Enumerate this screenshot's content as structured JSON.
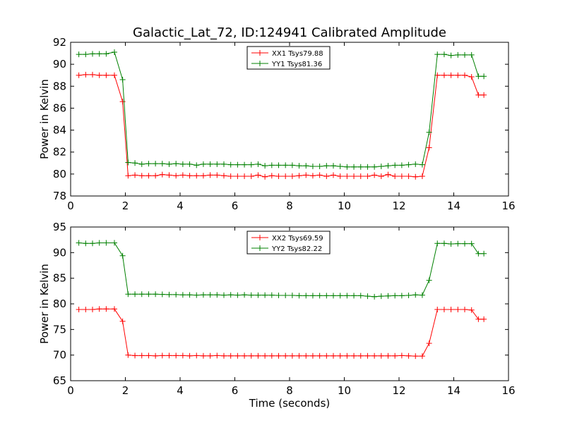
{
  "title": "Galactic_Lat_72, ID:124941 Calibrated Amplitude",
  "chart_data": [
    {
      "type": "line",
      "xlabel": "",
      "ylabel": "Power in Kelvin",
      "xlim": [
        0,
        16
      ],
      "ylim": [
        78,
        92
      ],
      "xticks": [
        "0",
        "2",
        "4",
        "6",
        "8",
        "10",
        "12",
        "14",
        "16"
      ],
      "yticks": [
        "78",
        "80",
        "82",
        "84",
        "86",
        "88",
        "90",
        "92"
      ],
      "legend_position": "upper-center",
      "x": [
        0.3,
        0.55,
        0.8,
        1.05,
        1.3,
        1.6,
        1.9,
        2.1,
        2.35,
        2.6,
        2.85,
        3.1,
        3.35,
        3.6,
        3.85,
        4.1,
        4.35,
        4.6,
        4.85,
        5.1,
        5.35,
        5.6,
        5.85,
        6.1,
        6.35,
        6.6,
        6.85,
        7.1,
        7.35,
        7.6,
        7.85,
        8.1,
        8.35,
        8.6,
        8.85,
        9.1,
        9.35,
        9.6,
        9.85,
        10.1,
        10.35,
        10.6,
        10.85,
        11.1,
        11.35,
        11.6,
        11.85,
        12.1,
        12.35,
        12.6,
        12.85,
        13.1,
        13.4,
        13.65,
        13.9,
        14.15,
        14.4,
        14.65,
        14.9,
        15.1
      ],
      "series": [
        {
          "name": "XX1 Tsys79.88",
          "color": "#ff0000",
          "values": [
            89.0,
            89.05,
            89.05,
            89.0,
            89.0,
            89.0,
            86.6,
            79.85,
            79.9,
            79.85,
            79.85,
            79.85,
            79.95,
            79.9,
            79.85,
            79.9,
            79.85,
            79.85,
            79.85,
            79.9,
            79.9,
            79.85,
            79.8,
            79.8,
            79.8,
            79.8,
            79.9,
            79.75,
            79.85,
            79.8,
            79.8,
            79.8,
            79.85,
            79.9,
            79.85,
            79.9,
            79.8,
            79.9,
            79.8,
            79.8,
            79.8,
            79.8,
            79.8,
            79.9,
            79.8,
            79.95,
            79.8,
            79.8,
            79.8,
            79.75,
            79.8,
            82.4,
            89.0,
            89.0,
            89.0,
            89.0,
            89.0,
            88.85,
            87.2,
            87.2
          ]
        },
        {
          "name": "YY1 Tsys81.36",
          "color": "#008000",
          "values": [
            90.9,
            90.9,
            90.95,
            90.95,
            90.95,
            91.1,
            88.6,
            81.05,
            81.0,
            80.9,
            80.95,
            80.95,
            80.95,
            80.9,
            80.95,
            80.9,
            80.9,
            80.8,
            80.9,
            80.9,
            80.9,
            80.9,
            80.85,
            80.85,
            80.85,
            80.85,
            80.9,
            80.75,
            80.8,
            80.8,
            80.8,
            80.8,
            80.75,
            80.75,
            80.7,
            80.7,
            80.75,
            80.75,
            80.7,
            80.65,
            80.65,
            80.65,
            80.65,
            80.65,
            80.7,
            80.75,
            80.8,
            80.8,
            80.85,
            80.9,
            80.85,
            83.8,
            90.9,
            90.9,
            90.8,
            90.85,
            90.85,
            90.85,
            88.9,
            88.9
          ]
        }
      ]
    },
    {
      "type": "line",
      "xlabel": "Time (seconds)",
      "ylabel": "Power in Kelvin",
      "xlim": [
        0,
        16
      ],
      "ylim": [
        65,
        95
      ],
      "xticks": [
        "0",
        "2",
        "4",
        "6",
        "8",
        "10",
        "12",
        "14",
        "16"
      ],
      "yticks": [
        "65",
        "70",
        "75",
        "80",
        "85",
        "90",
        "95"
      ],
      "legend_position": "upper-center",
      "x": [
        0.3,
        0.55,
        0.8,
        1.05,
        1.3,
        1.6,
        1.9,
        2.1,
        2.35,
        2.6,
        2.85,
        3.1,
        3.35,
        3.6,
        3.85,
        4.1,
        4.35,
        4.6,
        4.85,
        5.1,
        5.35,
        5.6,
        5.85,
        6.1,
        6.35,
        6.6,
        6.85,
        7.1,
        7.35,
        7.6,
        7.85,
        8.1,
        8.35,
        8.6,
        8.85,
        9.1,
        9.35,
        9.6,
        9.85,
        10.1,
        10.35,
        10.6,
        10.85,
        11.1,
        11.35,
        11.6,
        11.85,
        12.1,
        12.35,
        12.6,
        12.85,
        13.1,
        13.4,
        13.65,
        13.9,
        14.15,
        14.4,
        14.65,
        14.9,
        15.1
      ],
      "series": [
        {
          "name": "XX2 Tsys69.59",
          "color": "#ff0000",
          "values": [
            78.9,
            78.9,
            78.9,
            79.0,
            79.0,
            79.0,
            76.6,
            70.0,
            69.9,
            69.9,
            69.9,
            69.85,
            69.9,
            69.9,
            69.9,
            69.9,
            69.85,
            69.9,
            69.85,
            69.85,
            69.9,
            69.85,
            69.85,
            69.85,
            69.85,
            69.85,
            69.85,
            69.85,
            69.85,
            69.85,
            69.85,
            69.85,
            69.85,
            69.85,
            69.85,
            69.85,
            69.85,
            69.85,
            69.85,
            69.85,
            69.85,
            69.85,
            69.85,
            69.85,
            69.85,
            69.85,
            69.85,
            69.9,
            69.85,
            69.8,
            69.8,
            72.3,
            78.9,
            78.9,
            78.9,
            78.9,
            78.9,
            78.8,
            77.0,
            77.0
          ]
        },
        {
          "name": "YY2 Tsys82.22",
          "color": "#008000",
          "values": [
            91.9,
            91.8,
            91.8,
            91.9,
            91.9,
            91.9,
            89.4,
            81.9,
            81.9,
            81.9,
            81.9,
            81.9,
            81.85,
            81.8,
            81.8,
            81.75,
            81.75,
            81.7,
            81.75,
            81.75,
            81.75,
            81.7,
            81.75,
            81.7,
            81.75,
            81.7,
            81.7,
            81.7,
            81.7,
            81.65,
            81.65,
            81.65,
            81.6,
            81.6,
            81.6,
            81.6,
            81.6,
            81.6,
            81.6,
            81.6,
            81.6,
            81.6,
            81.5,
            81.4,
            81.5,
            81.55,
            81.6,
            81.6,
            81.65,
            81.75,
            81.7,
            84.6,
            91.8,
            91.8,
            91.7,
            91.75,
            91.75,
            91.75,
            89.8,
            89.8
          ]
        }
      ]
    }
  ]
}
